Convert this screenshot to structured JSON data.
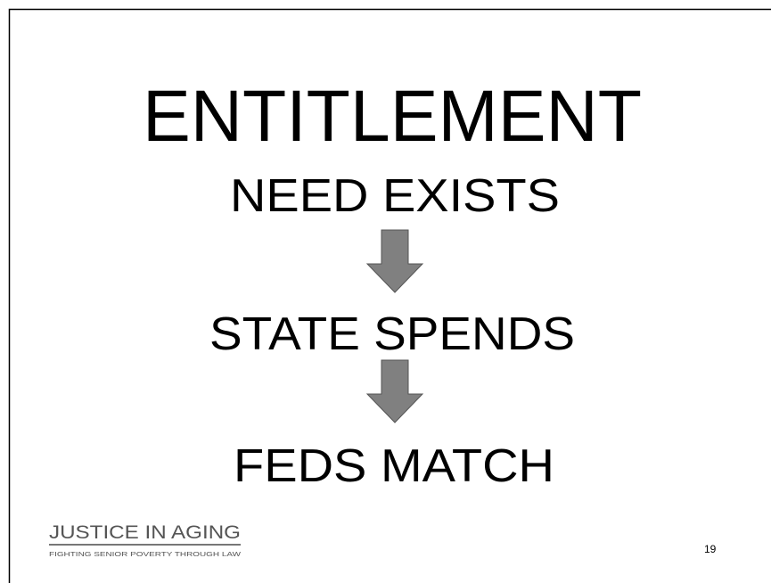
{
  "slide": {
    "title": "ENTITLEMENT",
    "steps": [
      "NEED EXISTS",
      "STATE SPENDS",
      "FEDS MATCH"
    ],
    "logo": {
      "name": "JUSTICE IN AGING",
      "tagline": "FIGHTING SENIOR POVERTY THROUGH LAW"
    },
    "page_number": "19"
  }
}
